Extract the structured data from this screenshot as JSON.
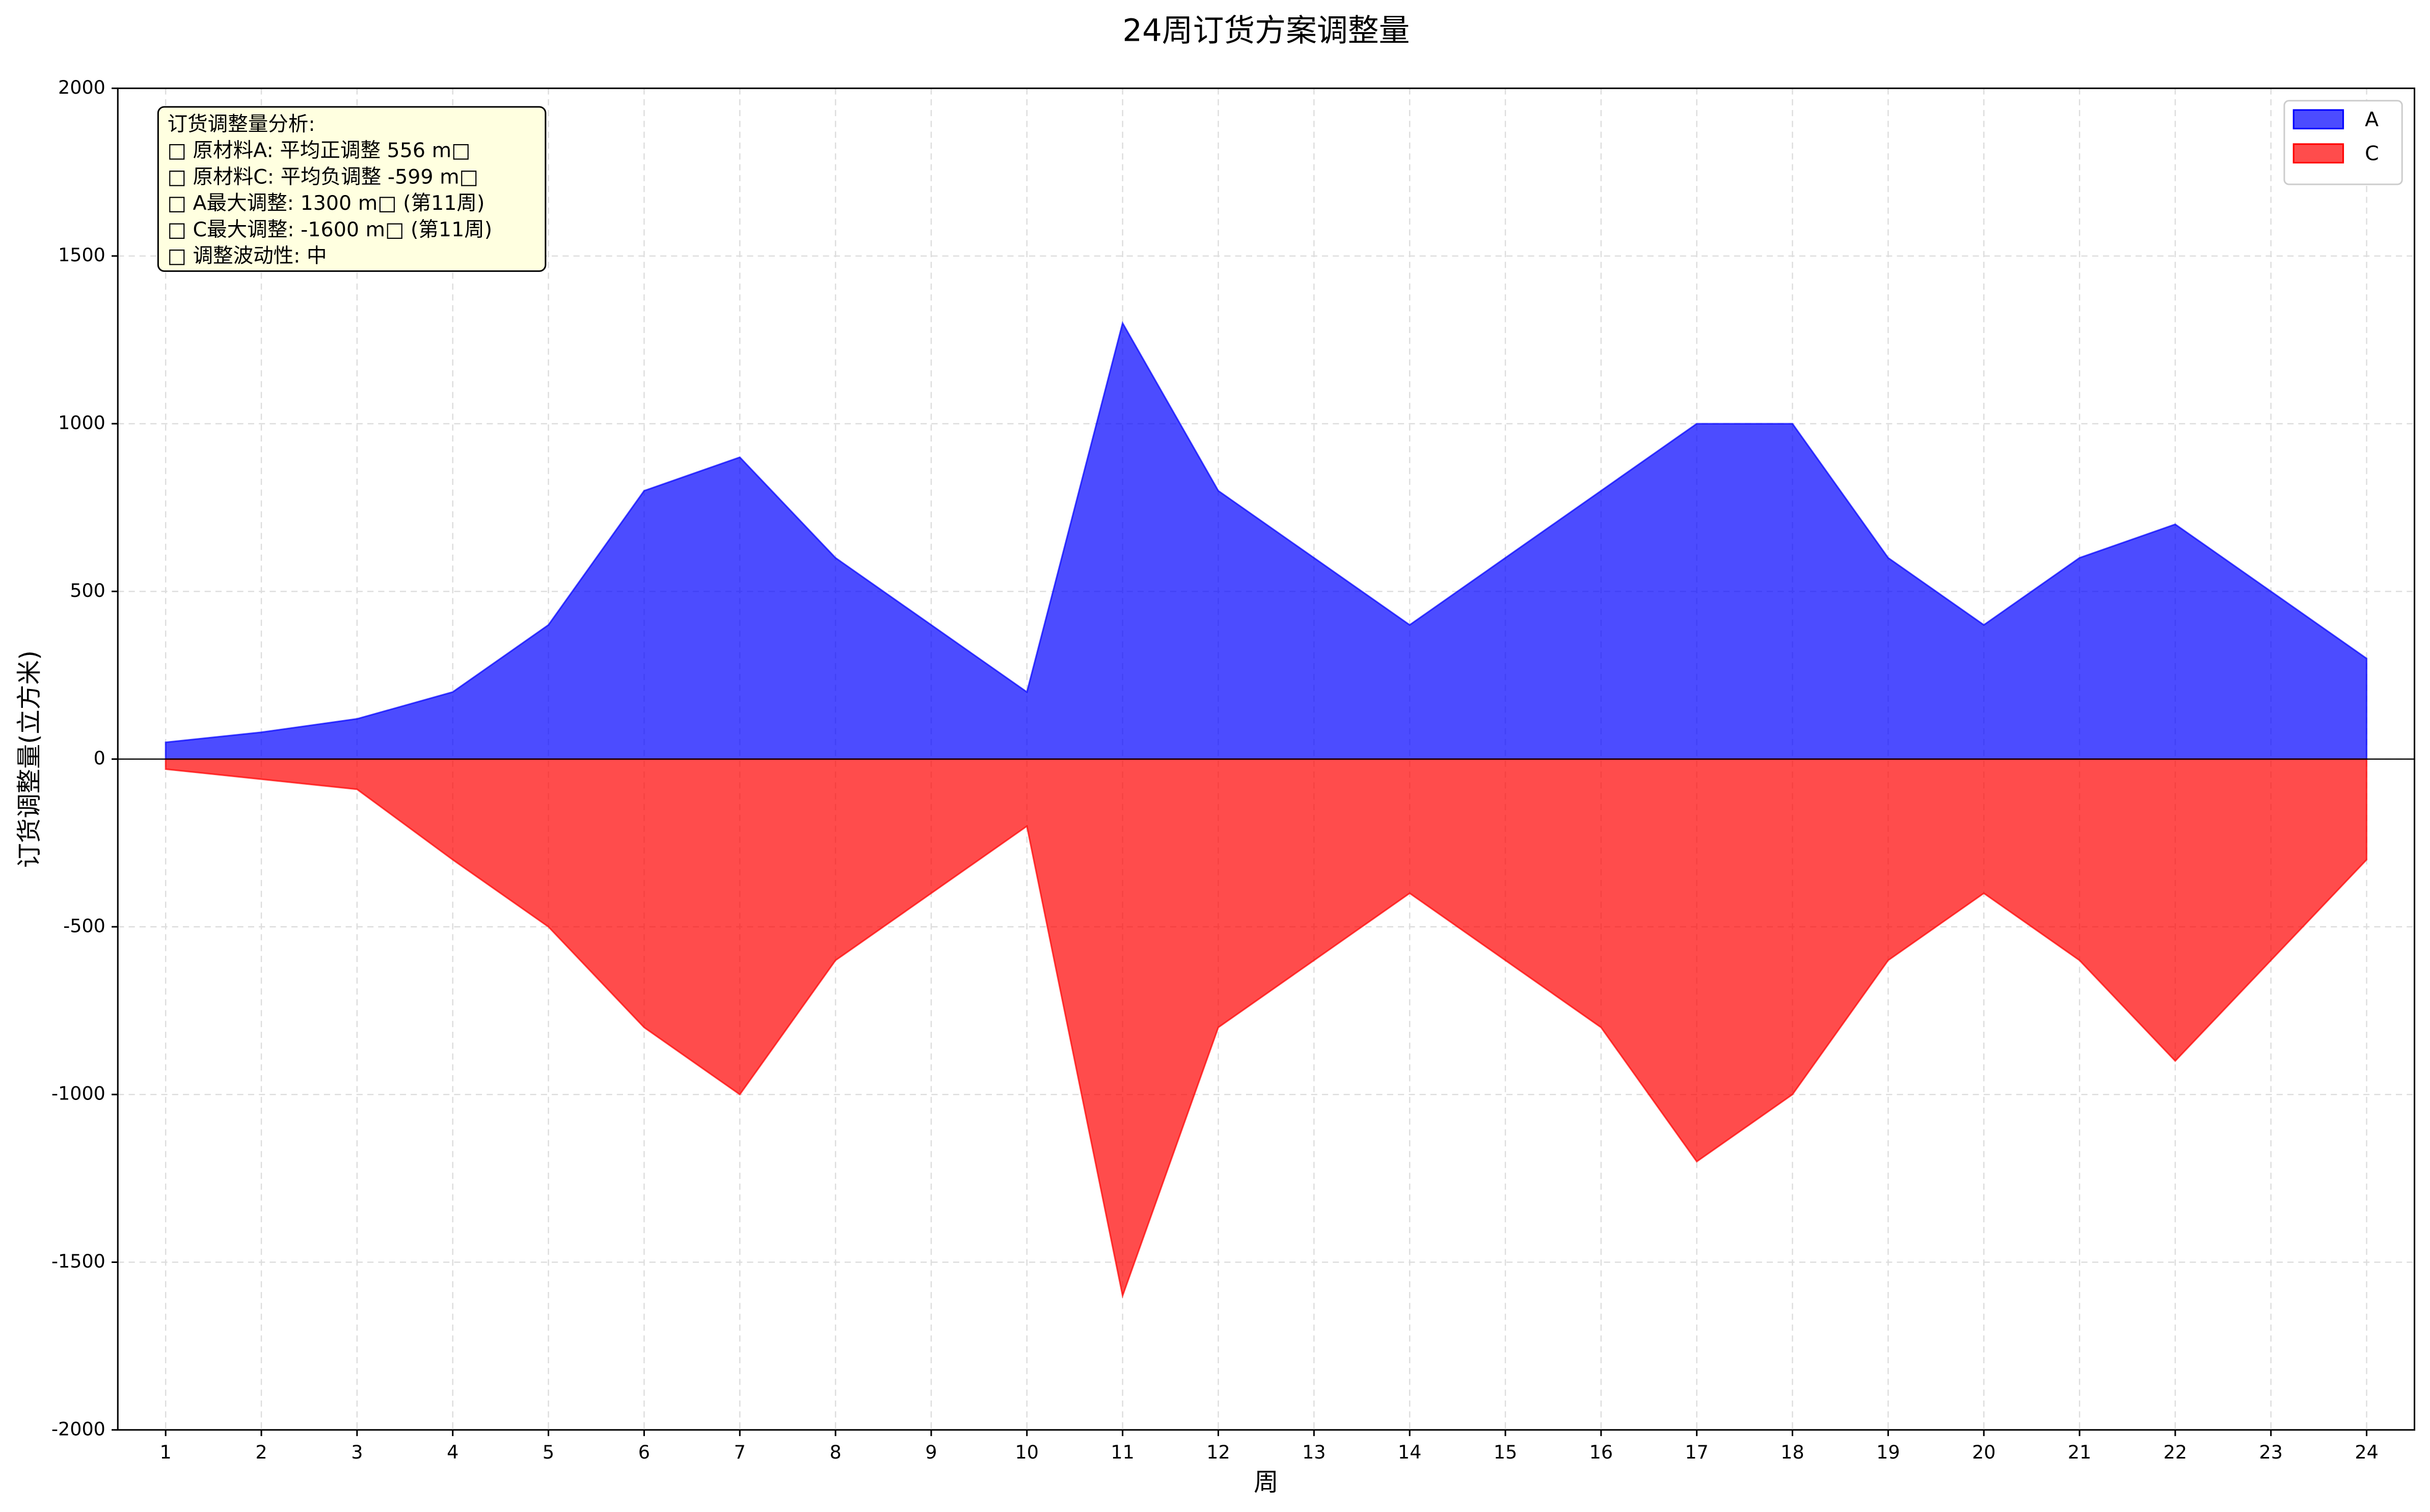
{
  "chart_data": {
    "type": "area",
    "title": "24周订货方案调整量",
    "x_label": "周",
    "y_label": "订货调整量(立方米)",
    "x": [
      1,
      2,
      3,
      4,
      5,
      6,
      7,
      8,
      9,
      10,
      11,
      12,
      13,
      14,
      15,
      16,
      17,
      18,
      19,
      20,
      21,
      22,
      23,
      24
    ],
    "xlim": [
      0.5,
      24.5
    ],
    "xticks": [
      1,
      2,
      3,
      4,
      5,
      6,
      7,
      8,
      9,
      10,
      11,
      12,
      13,
      14,
      15,
      16,
      17,
      18,
      19,
      20,
      21,
      22,
      23,
      24
    ],
    "ylim": [
      -2000,
      2000
    ],
    "yticks": [
      -2000,
      -1500,
      -1000,
      -500,
      0,
      500,
      1000,
      1500,
      2000
    ],
    "grid": true,
    "legend": "upper right",
    "series": [
      {
        "name": "A",
        "color": "#0000ff",
        "values": [
          50,
          80,
          120,
          200,
          400,
          800,
          900,
          600,
          400,
          200,
          1300,
          800,
          600,
          400,
          600,
          800,
          1000,
          1000,
          600,
          400,
          600,
          700,
          500,
          300
        ]
      },
      {
        "name": "C",
        "color": "#ff0000",
        "values": [
          -30,
          -60,
          -90,
          -300,
          -500,
          -800,
          -1000,
          -600,
          -400,
          -200,
          -1600,
          -800,
          -600,
          -400,
          -600,
          -800,
          -1200,
          -1000,
          -600,
          -400,
          -600,
          -900,
          -600,
          -300
        ]
      }
    ],
    "annotation": [
      "订货调整量分析:",
      "□ 原材料A: 平均正调整 556 m□",
      "□ 原材料C: 平均负调整 -599 m□",
      "□ A最大调整: 1300 m□ (第11周)",
      "□ C最大调整: -1600 m□ (第11周)",
      "□ 调整波动性: 中"
    ]
  }
}
